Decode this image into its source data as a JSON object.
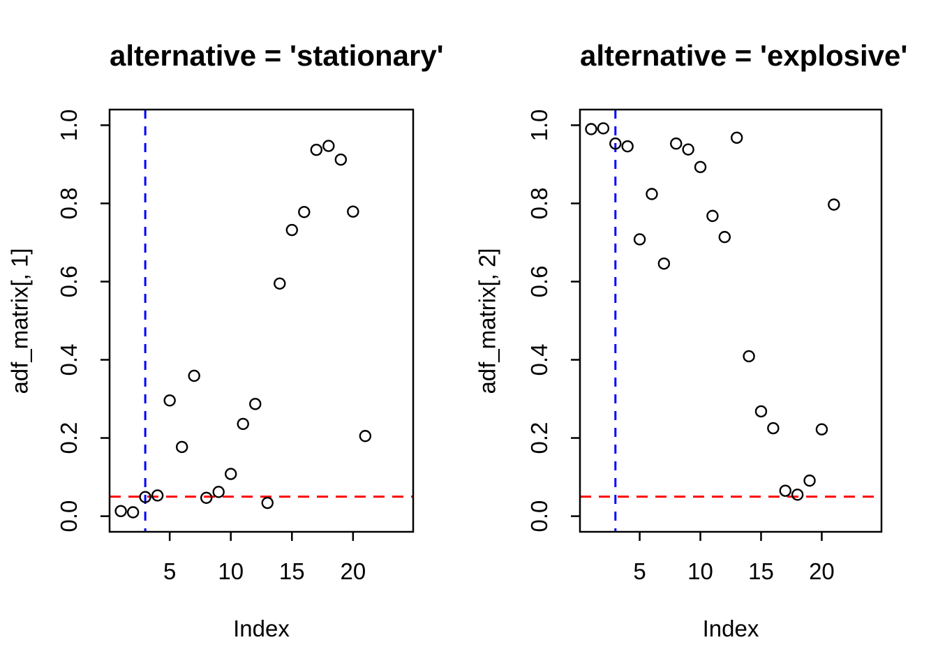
{
  "figure": {
    "background": "#ffffff",
    "point_color": "#000000",
    "axis_color": "#000000"
  },
  "chart_data": [
    {
      "type": "scatter",
      "title": "alternative = 'stationary'",
      "xlabel": "Index",
      "ylabel": "adf_matrix[, 1]",
      "x": [
        1,
        2,
        3,
        4,
        5,
        6,
        7,
        8,
        9,
        10,
        11,
        12,
        13,
        14,
        15,
        16,
        17,
        18,
        19,
        20,
        21
      ],
      "y": [
        0.013,
        0.01,
        0.049,
        0.053,
        0.296,
        0.177,
        0.359,
        0.047,
        0.062,
        0.108,
        0.236,
        0.287,
        0.034,
        0.595,
        0.732,
        0.778,
        0.937,
        0.947,
        0.912,
        0.779,
        0.205
      ],
      "xlim": [
        0.08,
        24.92
      ],
      "ylim": [
        -0.04,
        1.04
      ],
      "xticks": [
        5,
        10,
        15,
        20
      ],
      "xtick_labels": [
        "5",
        "10",
        "15",
        "20"
      ],
      "yticks": [
        0.0,
        0.2,
        0.4,
        0.6,
        0.8,
        1.0
      ],
      "ytick_labels": [
        "0.0",
        "0.2",
        "0.4",
        "0.6",
        "0.8",
        "1.0"
      ],
      "grid": false,
      "marker": "open-circle",
      "vline": {
        "x": 3,
        "color": "#0000ff",
        "style": "dashed"
      },
      "hline": {
        "y": 0.05,
        "color": "#ff0000",
        "style": "dashed"
      }
    },
    {
      "type": "scatter",
      "title": "alternative = 'explosive'",
      "xlabel": "Index",
      "ylabel": "adf_matrix[, 2]",
      "x": [
        1,
        2,
        3,
        4,
        5,
        6,
        7,
        8,
        9,
        10,
        11,
        12,
        13,
        14,
        15,
        16,
        17,
        18,
        19,
        20,
        21
      ],
      "y": [
        0.99,
        0.992,
        0.953,
        0.946,
        0.708,
        0.824,
        0.646,
        0.953,
        0.938,
        0.893,
        0.768,
        0.714,
        0.968,
        0.409,
        0.268,
        0.225,
        0.065,
        0.055,
        0.091,
        0.222,
        0.797
      ],
      "xlim": [
        0.08,
        24.92
      ],
      "ylim": [
        -0.04,
        1.04
      ],
      "xticks": [
        5,
        10,
        15,
        20
      ],
      "xtick_labels": [
        "5",
        "10",
        "15",
        "20"
      ],
      "yticks": [
        0.0,
        0.2,
        0.4,
        0.6,
        0.8,
        1.0
      ],
      "ytick_labels": [
        "0.0",
        "0.2",
        "0.4",
        "0.6",
        "0.8",
        "1.0"
      ],
      "grid": false,
      "marker": "open-circle",
      "vline": {
        "x": 3,
        "color": "#0000ff",
        "style": "dashed"
      },
      "hline": {
        "y": 0.05,
        "color": "#ff0000",
        "style": "dashed"
      }
    }
  ]
}
